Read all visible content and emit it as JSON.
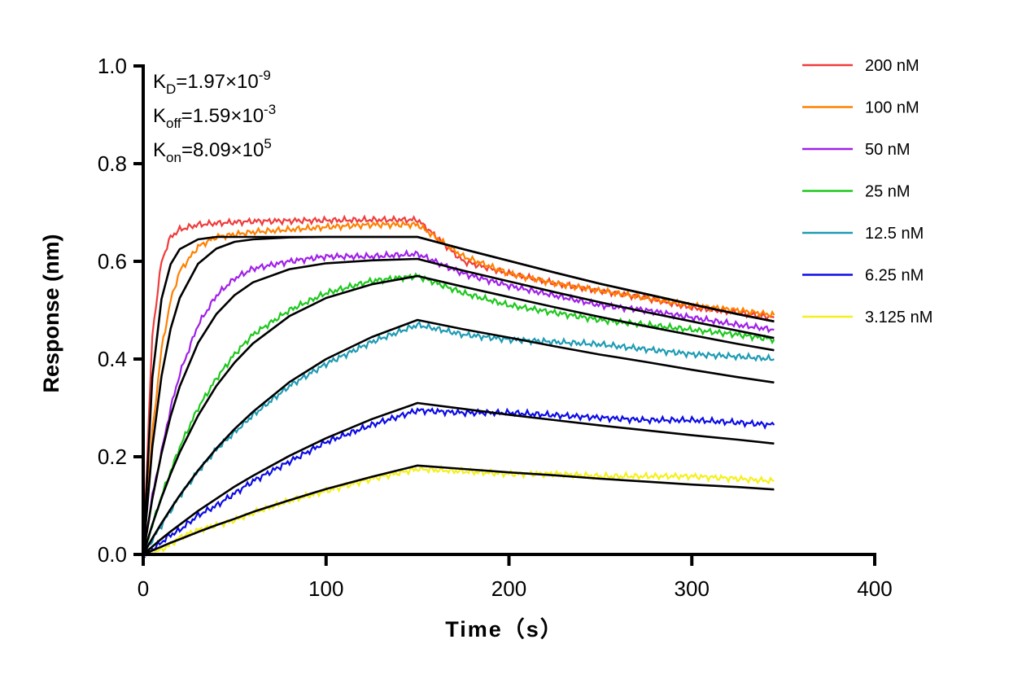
{
  "chart_data": {
    "type": "line",
    "xlabel": "Time（s）",
    "ylabel": "Response (nm)",
    "xlim": [
      0,
      400
    ],
    "ylim": [
      0,
      1.0
    ],
    "xticks": [
      "0",
      "100",
      "200",
      "300",
      "400"
    ],
    "yticks": [
      "0.0",
      "0.2",
      "0.4",
      "0.6",
      "0.8",
      "1.0"
    ],
    "grid": false,
    "legend_position": "right",
    "annotations": [
      {
        "main": "K",
        "sub": "D",
        "value": "=1.97×10",
        "sup": "-9"
      },
      {
        "main": "K",
        "sub": "off",
        "value": "=1.59×10",
        "sup": "-3"
      },
      {
        "main": "K",
        "sub": "on",
        "value": "=8.09×10",
        "sup": "5"
      }
    ],
    "x": [
      0,
      5,
      10,
      15,
      20,
      30,
      40,
      50,
      60,
      80,
      100,
      125,
      150,
      175,
      200,
      225,
      250,
      275,
      300,
      325,
      345
    ],
    "series": [
      {
        "name": "200 nM",
        "color": "#f03c3c",
        "values": [
          0,
          0.45,
          0.6,
          0.65,
          0.665,
          0.675,
          0.678,
          0.68,
          0.682,
          0.683,
          0.684,
          0.685,
          0.685,
          0.6,
          0.575,
          0.555,
          0.54,
          0.525,
          0.505,
          0.495,
          0.485
        ],
        "fit": [
          0,
          0.362,
          0.523,
          0.594,
          0.625,
          0.645,
          0.65,
          0.65,
          0.65,
          0.65,
          0.65,
          0.65,
          0.65,
          0.625,
          0.601,
          0.577,
          0.554,
          0.533,
          0.512,
          0.492,
          0.477
        ]
      },
      {
        "name": "100 nM",
        "color": "#ff8000",
        "values": [
          0,
          0.25,
          0.42,
          0.52,
          0.58,
          0.63,
          0.65,
          0.655,
          0.66,
          0.665,
          0.67,
          0.675,
          0.675,
          0.61,
          0.575,
          0.555,
          0.54,
          0.525,
          0.51,
          0.5,
          0.49
        ],
        "fit": [
          0,
          0.22,
          0.365,
          0.462,
          0.525,
          0.595,
          0.626,
          0.64,
          0.645,
          0.649,
          0.65,
          0.65,
          0.65,
          0.625,
          0.601,
          0.577,
          0.554,
          0.533,
          0.512,
          0.492,
          0.477
        ]
      },
      {
        "name": "50 nM",
        "color": "#a020e8",
        "values": [
          0,
          0.12,
          0.21,
          0.3,
          0.37,
          0.47,
          0.53,
          0.565,
          0.585,
          0.6,
          0.61,
          0.61,
          0.615,
          0.575,
          0.55,
          0.53,
          0.51,
          0.5,
          0.485,
          0.47,
          0.46
        ],
        "fit": [
          0,
          0.114,
          0.207,
          0.283,
          0.344,
          0.433,
          0.492,
          0.531,
          0.557,
          0.584,
          0.596,
          0.602,
          0.605,
          0.581,
          0.559,
          0.537,
          0.516,
          0.496,
          0.477,
          0.458,
          0.443
        ]
      },
      {
        "name": "25 nM",
        "color": "#1ec81e",
        "values": [
          0,
          0.06,
          0.12,
          0.17,
          0.22,
          0.3,
          0.36,
          0.41,
          0.45,
          0.5,
          0.535,
          0.56,
          0.57,
          0.535,
          0.51,
          0.495,
          0.48,
          0.47,
          0.46,
          0.45,
          0.44
        ],
        "fit": [
          0,
          0.061,
          0.116,
          0.165,
          0.209,
          0.284,
          0.345,
          0.393,
          0.432,
          0.488,
          0.525,
          0.553,
          0.57,
          0.548,
          0.527,
          0.506,
          0.486,
          0.467,
          0.449,
          0.431,
          0.418
        ]
      },
      {
        "name": "12.5 nM",
        "color": "#1e9bb4",
        "values": [
          0,
          0.03,
          0.06,
          0.09,
          0.12,
          0.17,
          0.215,
          0.25,
          0.285,
          0.345,
          0.39,
          0.435,
          0.47,
          0.45,
          0.44,
          0.435,
          0.43,
          0.42,
          0.41,
          0.405,
          0.4
        ],
        "fit": [
          0,
          0.033,
          0.064,
          0.093,
          0.121,
          0.172,
          0.217,
          0.257,
          0.292,
          0.353,
          0.4,
          0.445,
          0.48,
          0.461,
          0.444,
          0.426,
          0.409,
          0.394,
          0.378,
          0.363,
          0.352
        ]
      },
      {
        "name": "6.25 nM",
        "color": "#0a0ae6",
        "values": [
          0,
          0.01,
          0.025,
          0.04,
          0.05,
          0.08,
          0.1,
          0.125,
          0.15,
          0.19,
          0.23,
          0.265,
          0.295,
          0.29,
          0.29,
          0.285,
          0.28,
          0.275,
          0.275,
          0.27,
          0.265
        ],
        "fit": [
          0,
          0.016,
          0.032,
          0.047,
          0.061,
          0.089,
          0.114,
          0.139,
          0.161,
          0.202,
          0.238,
          0.277,
          0.31,
          0.298,
          0.286,
          0.275,
          0.264,
          0.254,
          0.244,
          0.235,
          0.227
        ]
      },
      {
        "name": "3.125 nM",
        "color": "#f5f01e",
        "values": [
          0,
          0.003,
          0.01,
          0.02,
          0.035,
          0.05,
          0.06,
          0.07,
          0.085,
          0.11,
          0.13,
          0.155,
          0.175,
          0.17,
          0.165,
          0.165,
          0.16,
          0.16,
          0.16,
          0.155,
          0.15
        ],
        "fit": [
          0,
          0.008,
          0.016,
          0.024,
          0.031,
          0.046,
          0.06,
          0.073,
          0.087,
          0.111,
          0.134,
          0.159,
          0.182,
          0.175,
          0.168,
          0.162,
          0.155,
          0.149,
          0.143,
          0.138,
          0.133
        ]
      }
    ],
    "fit_color": "#000000"
  }
}
